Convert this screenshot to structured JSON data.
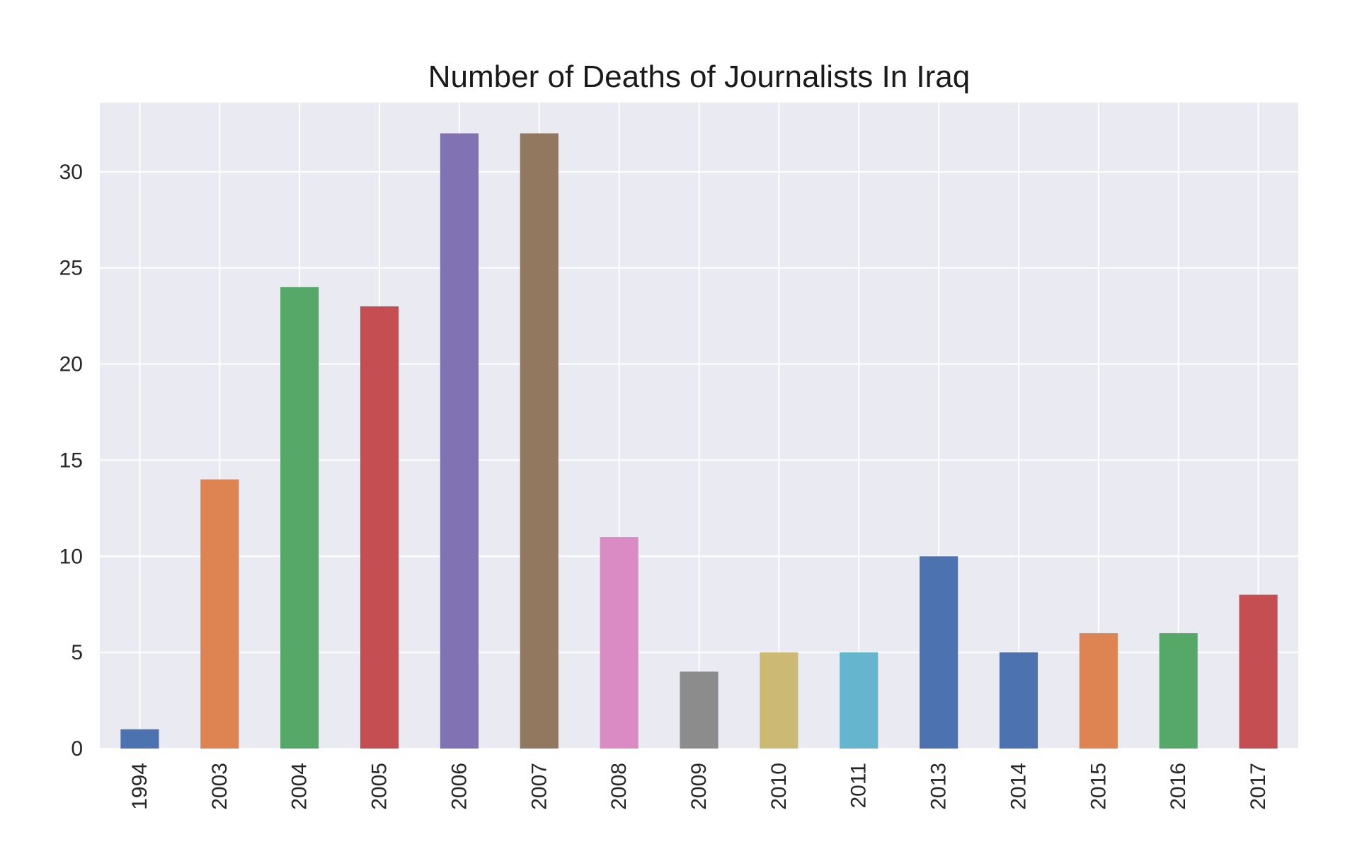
{
  "chart_data": {
    "type": "bar",
    "title": "Number of Deaths of Journalists In Iraq",
    "xlabel": "",
    "ylabel": "",
    "categories": [
      "1994",
      "2003",
      "2004",
      "2005",
      "2006",
      "2007",
      "2008",
      "2009",
      "2010",
      "2011",
      "2013",
      "2014",
      "2015",
      "2016",
      "2017"
    ],
    "values": [
      1,
      14,
      24,
      23,
      32,
      32,
      11,
      4,
      5,
      5,
      10,
      5,
      6,
      6,
      8
    ],
    "bar_colors": [
      "#4c72b0",
      "#dd8452",
      "#55a868",
      "#c44e52",
      "#8172b3",
      "#937860",
      "#da8bc3",
      "#8c8c8c",
      "#ccb974",
      "#64b5cd",
      "#4c72b0",
      "#4c72b0",
      "#dd8452",
      "#55a868",
      "#c44e52"
    ],
    "yticks": [
      0,
      5,
      10,
      15,
      20,
      25,
      30
    ],
    "ylim": [
      0,
      33.6
    ],
    "grid": true,
    "background": "#eaeaf2",
    "grid_color": "#ffffff",
    "legend": "none"
  }
}
